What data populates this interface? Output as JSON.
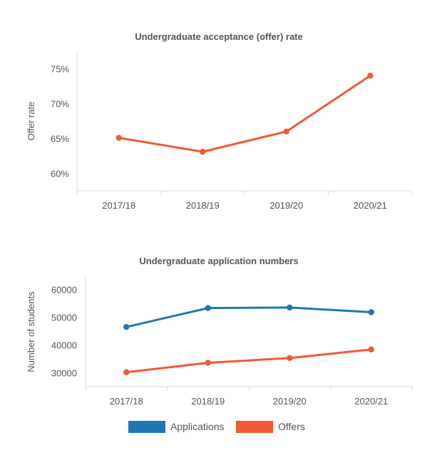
{
  "colors": {
    "applications": "#1f77b4",
    "offers": "#f15a35"
  },
  "chart_data": [
    {
      "type": "line",
      "title": "Undergraduate acceptance (offer) rate",
      "xlabel": "",
      "ylabel": "Offer rate",
      "categories": [
        "2017/18",
        "2018/19",
        "2019/20",
        "2020/21"
      ],
      "yticks": [
        60,
        65,
        70,
        75
      ],
      "ytick_labels": [
        "60%",
        "65%",
        "70%",
        "75%"
      ],
      "ylim": [
        57.5,
        77.5
      ],
      "unit": "%",
      "grid": false,
      "series": [
        {
          "key": "offers",
          "values": [
            65.1,
            63.1,
            66.0,
            74.0
          ]
        }
      ]
    },
    {
      "type": "line",
      "title": "Undergraduate application numbers",
      "xlabel": "",
      "ylabel": "Number of students",
      "categories": [
        "2017/18",
        "2018/19",
        "2019/20",
        "2020/21"
      ],
      "yticks": [
        30000,
        40000,
        50000,
        60000
      ],
      "ytick_labels": [
        "30000",
        "40000",
        "50000",
        "60000"
      ],
      "ylim": [
        25000,
        65000
      ],
      "grid": false,
      "legend": "bottom-center",
      "series": [
        {
          "key": "applications",
          "name": "Applications",
          "values": [
            46500,
            53300,
            53500,
            51800
          ]
        },
        {
          "key": "offers",
          "name": "Offers",
          "values": [
            30200,
            33600,
            35300,
            38400
          ]
        }
      ]
    }
  ]
}
